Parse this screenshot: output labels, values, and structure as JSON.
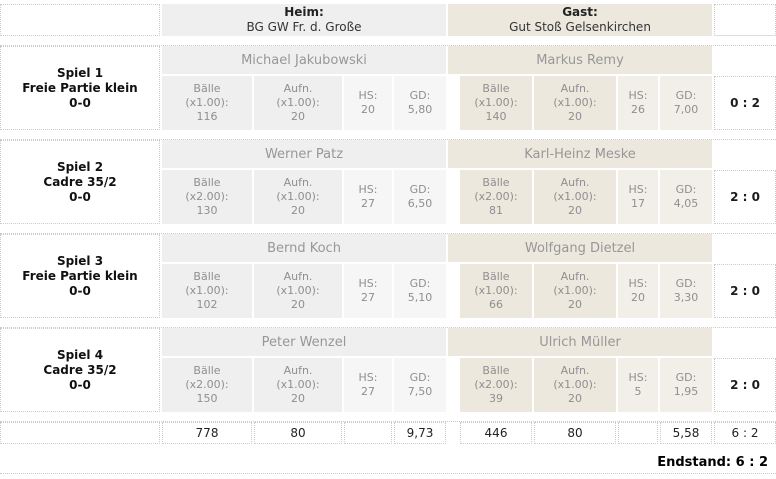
{
  "header": {
    "home_label": "Heim:",
    "home_team": "BG GW Fr. d. Große",
    "guest_label": "Gast:",
    "guest_team": "Gut Stoß Gelsenkirchen"
  },
  "labels": {
    "balls": "Bälle",
    "innings": "Aufn.",
    "hs": "HS:",
    "gd": "GD:"
  },
  "games": [
    {
      "title": "Spiel 1",
      "discipline": "Freie Partie klein",
      "start_score": "0-0",
      "score": "0 : 2",
      "home": {
        "player": "Michael Jakubowski",
        "balls_factor": "(x1.00):",
        "balls": "116",
        "innings_factor": "(x1.00):",
        "innings": "20",
        "hs": "20",
        "gd": "5,80"
      },
      "guest": {
        "player": "Markus Remy",
        "balls_factor": "(x1.00):",
        "balls": "140",
        "innings_factor": "(x1.00):",
        "innings": "20",
        "hs": "26",
        "gd": "7,00"
      }
    },
    {
      "title": "Spiel 2",
      "discipline": "Cadre 35/2",
      "start_score": "0-0",
      "score": "2 : 0",
      "home": {
        "player": "Werner Patz",
        "balls_factor": "(x2.00):",
        "balls": "130",
        "innings_factor": "(x1.00):",
        "innings": "20",
        "hs": "27",
        "gd": "6,50"
      },
      "guest": {
        "player": "Karl-Heinz Meske",
        "balls_factor": "(x2.00):",
        "balls": "81",
        "innings_factor": "(x1.00):",
        "innings": "20",
        "hs": "17",
        "gd": "4,05"
      }
    },
    {
      "title": "Spiel 3",
      "discipline": "Freie Partie klein",
      "start_score": "0-0",
      "score": "2 : 0",
      "home": {
        "player": "Bernd Koch",
        "balls_factor": "(x1.00):",
        "balls": "102",
        "innings_factor": "(x1.00):",
        "innings": "20",
        "hs": "27",
        "gd": "5,10"
      },
      "guest": {
        "player": "Wolfgang Dietzel",
        "balls_factor": "(x1.00):",
        "balls": "66",
        "innings_factor": "(x1.00):",
        "innings": "20",
        "hs": "20",
        "gd": "3,30"
      }
    },
    {
      "title": "Spiel 4",
      "discipline": "Cadre 35/2",
      "start_score": "0-0",
      "score": "2 : 0",
      "home": {
        "player": "Peter Wenzel",
        "balls_factor": "(x2.00):",
        "balls": "150",
        "innings_factor": "(x1.00):",
        "innings": "20",
        "hs": "27",
        "gd": "7,50"
      },
      "guest": {
        "player": "Ulrich Müller",
        "balls_factor": "(x2.00):",
        "balls": "39",
        "innings_factor": "(x1.00):",
        "innings": "20",
        "hs": "5",
        "gd": "1,95"
      }
    }
  ],
  "totals": {
    "home_balls": "778",
    "home_innings": "80",
    "home_hs": "",
    "home_gd": "9,73",
    "guest_balls": "446",
    "guest_innings": "80",
    "guest_hs": "",
    "guest_gd": "5,58",
    "score": "6 : 2"
  },
  "endstand": "Endstand: 6 : 2",
  "colors": {
    "home_bg": "#f0efef",
    "home_bg_light": "#f6f6f6",
    "guest_bg": "#ece8de",
    "guest_bg_light": "#f2efe8",
    "dotted_border": "#cbcbcb",
    "muted_text": "#8f8f8f"
  }
}
